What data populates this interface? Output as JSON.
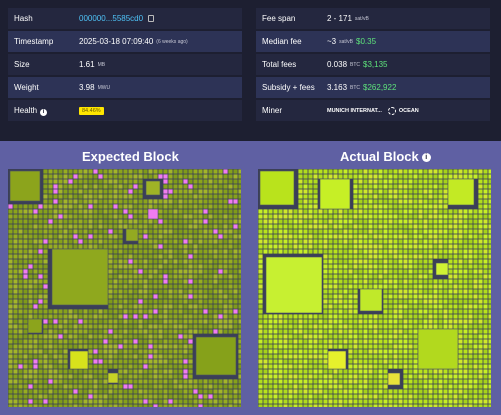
{
  "left_table": {
    "hash": {
      "label": "Hash",
      "value": "000000...5585cd0"
    },
    "timestamp": {
      "label": "Timestamp",
      "value": "2025-03-18 07:09:40",
      "ago": "(6 weeks ago)"
    },
    "size": {
      "label": "Size",
      "value": "1.61",
      "unit": "MB"
    },
    "weight": {
      "label": "Weight",
      "value": "3.98",
      "unit": "MWU"
    },
    "health": {
      "label": "Health",
      "value": "84.46%"
    }
  },
  "right_table": {
    "fee_span": {
      "label": "Fee span",
      "value": "2 - 171",
      "unit": "sat/vB"
    },
    "median_fee": {
      "label": "Median fee",
      "value": "~3",
      "unit": "sat/vB",
      "usd": "$0.35"
    },
    "total_fees": {
      "label": "Total fees",
      "value": "0.038",
      "unit": "BTC",
      "usd": "$3,135"
    },
    "subsidy_fees": {
      "label": "Subsidy + fees",
      "value": "3.163",
      "unit": "BTC",
      "usd": "$262,922"
    },
    "miner": {
      "label": "Miner",
      "value": "MUNICH INTERNAT...",
      "pool": "OCEAN"
    }
  },
  "expected_block": {
    "title": "Expected Block"
  },
  "actual_block": {
    "title": "Actual Block"
  },
  "colors": {
    "accent_blue": "#4fc3f7",
    "usd_green": "#5ee27b",
    "health_badge": "#ffe600",
    "panel_bg": "#5f60a3",
    "expected_fill": "#8ca41c",
    "actual_fill": "#b9e31c",
    "missing_tx": "#f07cf0"
  }
}
